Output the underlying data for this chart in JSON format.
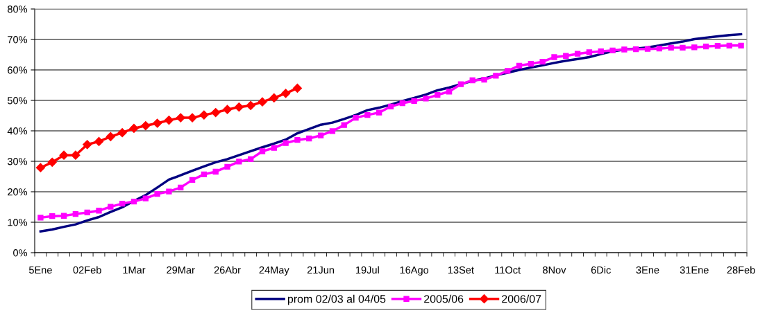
{
  "chart_data": {
    "type": "line",
    "categories": [
      "5Ene",
      null,
      null,
      null,
      "02Feb",
      null,
      null,
      null,
      "1Mar",
      null,
      null,
      null,
      "29Mar",
      null,
      null,
      null,
      "26Abr",
      null,
      null,
      null,
      "24May",
      null,
      null,
      null,
      "21Jun",
      null,
      null,
      null,
      "19Jul",
      null,
      null,
      null,
      "16Ago",
      null,
      null,
      null,
      "13Set",
      null,
      null,
      null,
      "11Oct",
      null,
      null,
      null,
      "8Nov",
      null,
      null,
      null,
      "6Dic",
      null,
      null,
      null,
      "3Ene",
      null,
      null,
      null,
      "31Ene",
      null,
      null,
      null,
      "28Feb"
    ],
    "series": [
      {
        "name": "prom 02/03 al 04/05",
        "color": "#000080",
        "marker": "none",
        "values": [
          7.0,
          7.6,
          8.5,
          9.3,
          10.6,
          11.7,
          13.4,
          14.9,
          17.0,
          18.9,
          21.4,
          24.0,
          25.4,
          26.9,
          28.3,
          29.7,
          30.7,
          32.0,
          33.3,
          34.6,
          35.8,
          37.1,
          39.2,
          40.6,
          42.0,
          42.7,
          43.9,
          45.2,
          46.8,
          47.6,
          48.6,
          49.8,
          50.8,
          51.9,
          53.3,
          54.2,
          55.3,
          56.4,
          57.2,
          58.2,
          59.1,
          60.0,
          60.8,
          61.5,
          62.3,
          63.0,
          63.6,
          64.2,
          65.2,
          66.1,
          66.7,
          67.0,
          67.4,
          68.0,
          68.7,
          69.3,
          70.1,
          70.6,
          71.0,
          71.4,
          71.7
        ]
      },
      {
        "name": "2005/06",
        "color": "#ff00ff",
        "marker": "square",
        "values": [
          11.5,
          12.0,
          12.1,
          12.7,
          13.2,
          13.8,
          15.1,
          16.1,
          16.8,
          17.8,
          19.3,
          20.1,
          21.4,
          23.9,
          25.7,
          26.6,
          28.2,
          29.9,
          30.7,
          33.3,
          34.4,
          36.0,
          37.0,
          37.5,
          38.5,
          39.9,
          41.9,
          44.3,
          45.2,
          46.0,
          48.0,
          49.1,
          49.8,
          50.6,
          51.8,
          52.9,
          55.3,
          56.6,
          56.8,
          58.1,
          59.7,
          61.4,
          62.0,
          62.7,
          64.2,
          64.6,
          65.3,
          65.8,
          66.1,
          66.4,
          66.7,
          66.8,
          66.9,
          67.0,
          67.3,
          67.3,
          67.4,
          67.7,
          67.9,
          68.0,
          68.0
        ]
      },
      {
        "name": "2006/07",
        "color": "#ff0000",
        "marker": "diamond",
        "values": [
          27.9,
          29.7,
          32.0,
          32.0,
          35.5,
          36.5,
          38.1,
          39.4,
          40.8,
          41.7,
          42.5,
          43.5,
          44.3,
          44.3,
          45.2,
          46.0,
          47.0,
          47.8,
          48.3,
          49.5,
          50.8,
          52.3,
          54.0,
          null,
          null,
          null,
          null,
          null,
          null,
          null,
          null,
          null,
          null,
          null,
          null,
          null,
          null,
          null,
          null,
          null,
          null,
          null,
          null,
          null,
          null,
          null,
          null,
          null,
          null,
          null,
          null,
          null,
          null,
          null,
          null,
          null,
          null,
          null,
          null,
          null,
          null
        ]
      }
    ],
    "ylim": [
      0,
      80
    ],
    "yticks": [
      {
        "value": 0,
        "label": "0%"
      },
      {
        "value": 10,
        "label": "10%"
      },
      {
        "value": 20,
        "label": "20%"
      },
      {
        "value": 30,
        "label": "30%"
      },
      {
        "value": 40,
        "label": "40%"
      },
      {
        "value": 50,
        "label": "50%"
      },
      {
        "value": 60,
        "label": "60%"
      },
      {
        "value": 70,
        "label": "70%"
      },
      {
        "value": 80,
        "label": "80%"
      }
    ],
    "grid": "y",
    "legend": "bottom",
    "line_style": "solid"
  }
}
